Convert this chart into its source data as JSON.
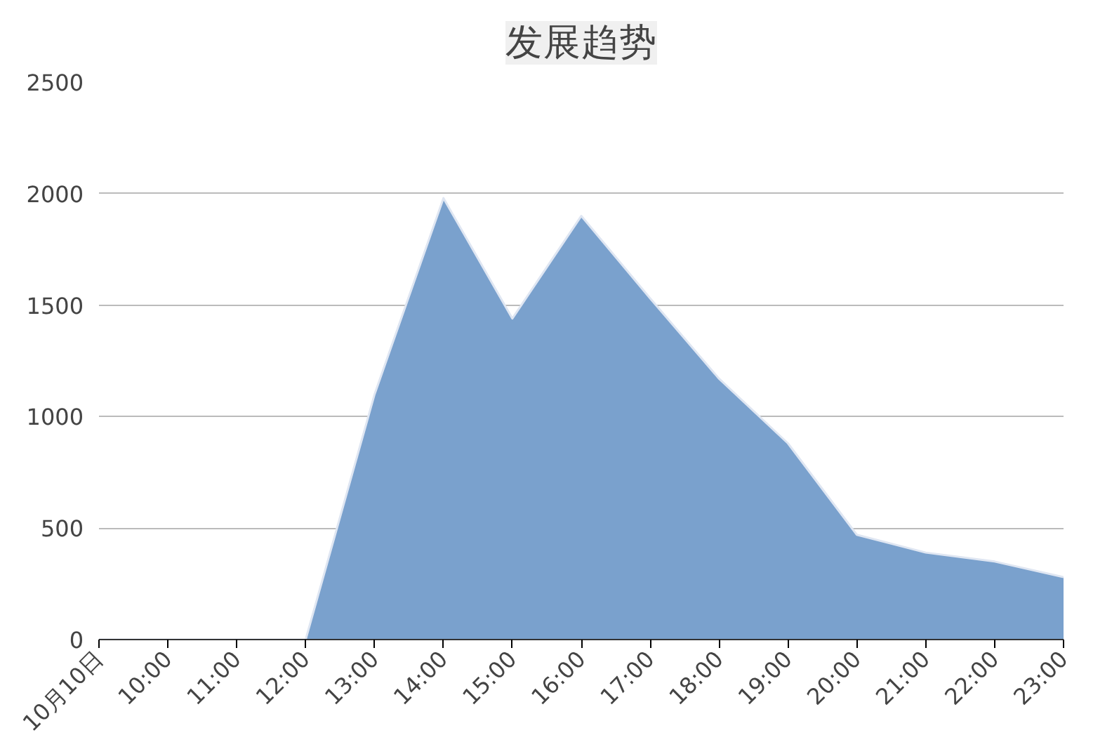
{
  "chart_data": {
    "type": "area",
    "title": "发展趋势",
    "categories": [
      "10月10日",
      "10:00",
      "11:00",
      "12:00",
      "13:00",
      "14:00",
      "15:00",
      "16:00",
      "17:00",
      "18:00",
      "19:00",
      "20:00",
      "21:00",
      "22:00",
      "23:00"
    ],
    "values": [
      0,
      0,
      0,
      0,
      1100,
      1980,
      1440,
      1900,
      1530,
      1170,
      880,
      470,
      390,
      350,
      280
    ],
    "color": "#7aa1cd",
    "ylim": [
      0,
      2500
    ],
    "yticks": [
      0,
      500,
      1000,
      1500,
      2000,
      2500
    ],
    "grid": "y"
  }
}
